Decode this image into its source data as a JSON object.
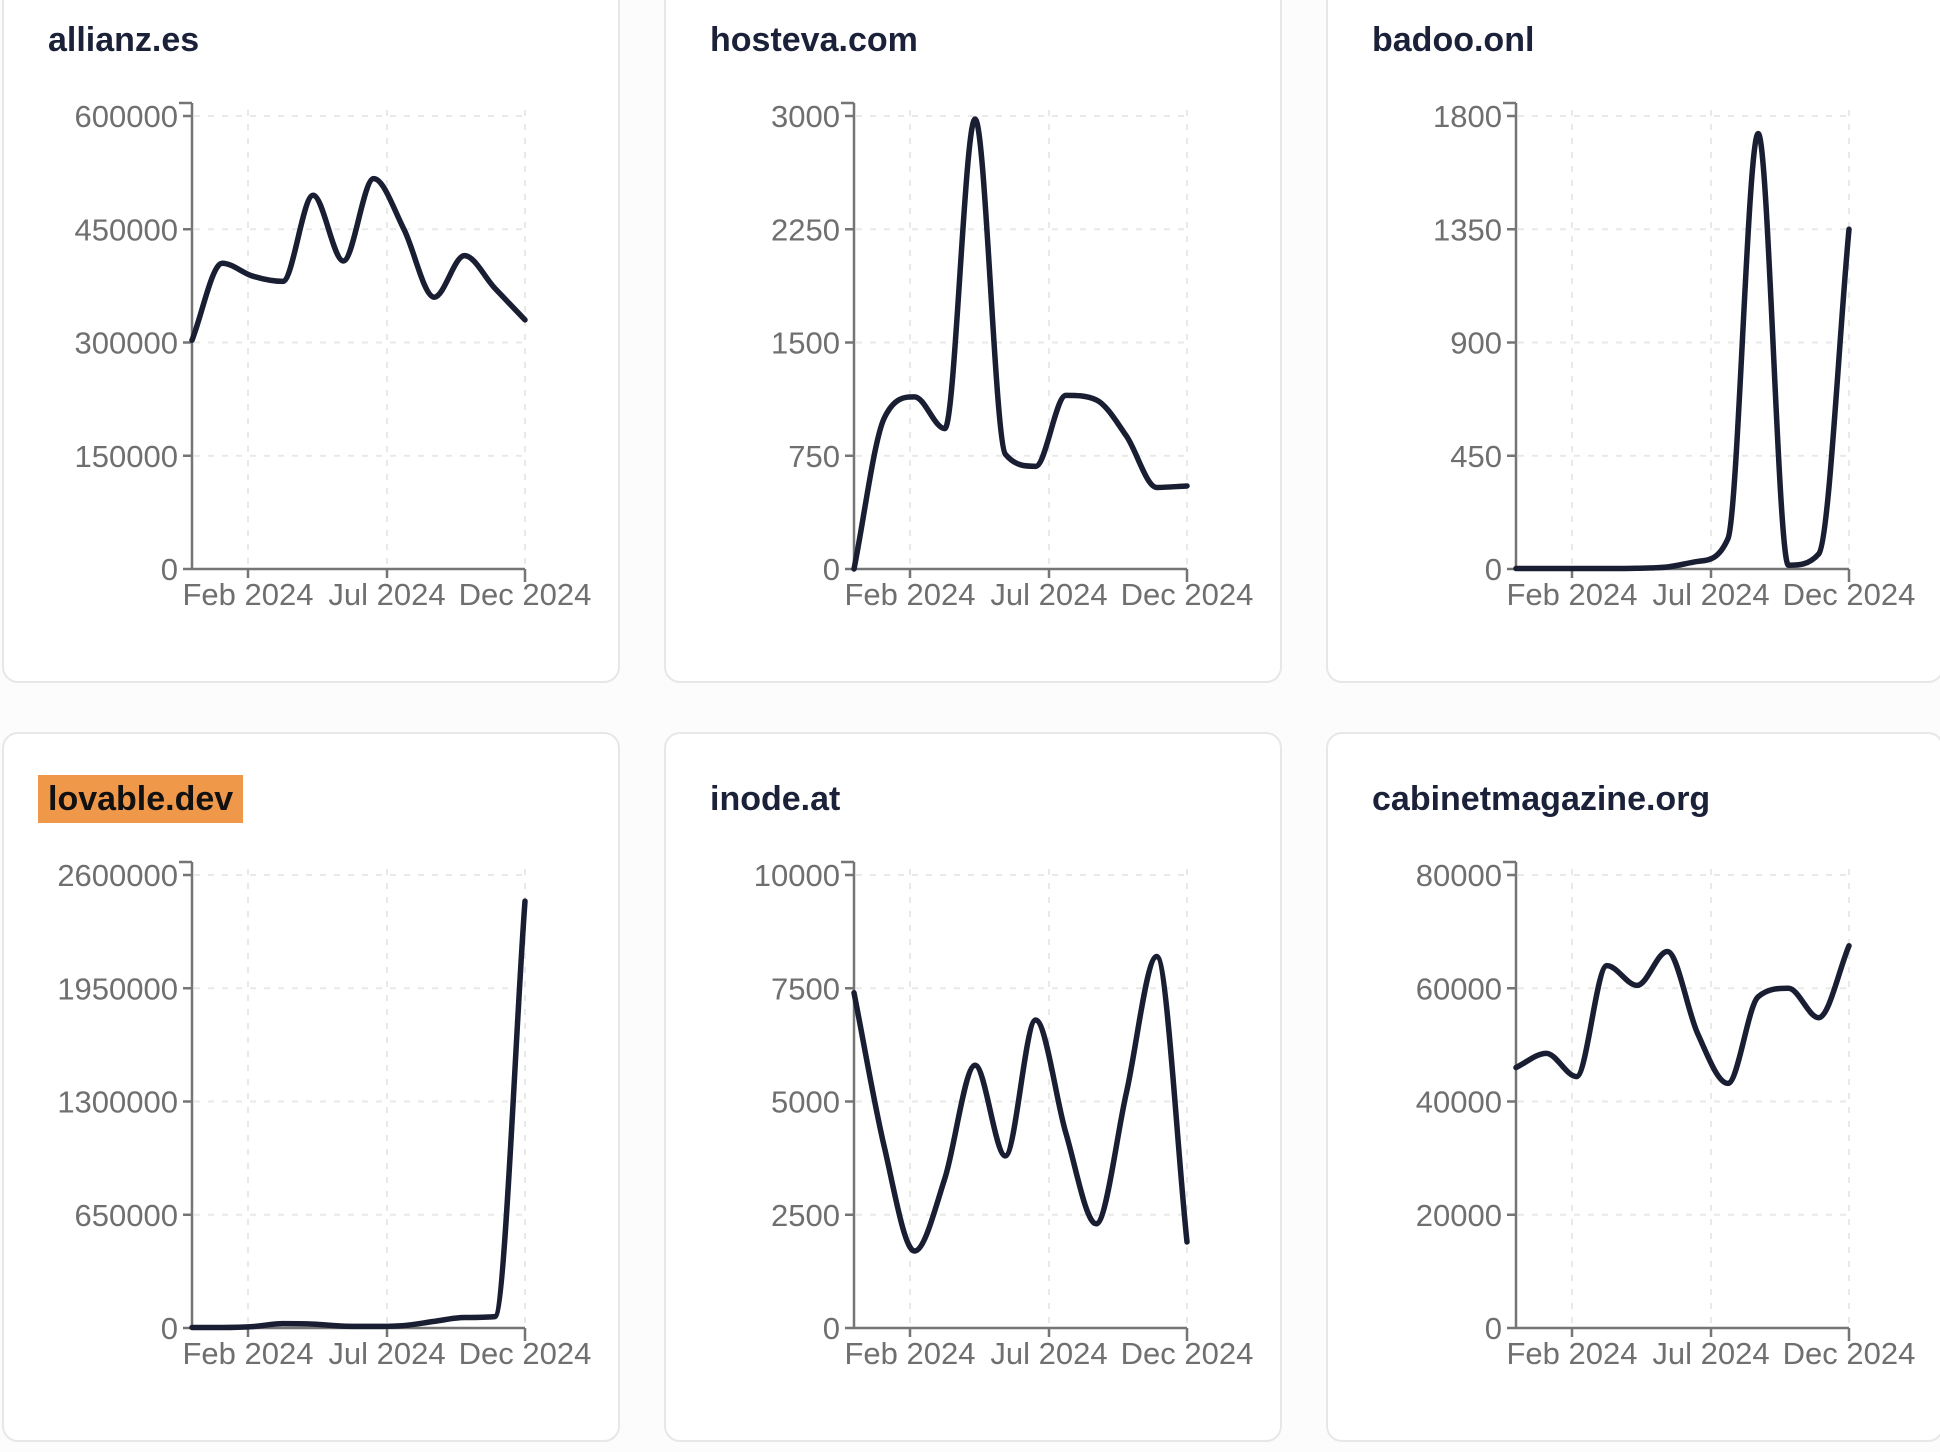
{
  "page": {
    "background_color": "#fcfcfc"
  },
  "style": {
    "card_background": "#ffffff",
    "card_border_color": "#e7e7ea",
    "title_color": "#1b2138",
    "highlight_background": "#f0984a",
    "highlight_text_color": "#111111",
    "line_color": "#191e32",
    "tick_label_color": "#6f6f6f",
    "axis_color": "#757575",
    "grid_color": "#e9e9e9"
  },
  "chart_data": [
    {
      "type": "line",
      "title": "allianz.es",
      "highlighted": false,
      "x": [
        "Jan 2024",
        "Feb 2024",
        "Mar 2024",
        "Apr 2024",
        "May 2024",
        "Jun 2024",
        "Jul 2024",
        "Aug 2024",
        "Sep 2024",
        "Oct 2024",
        "Nov 2024",
        "Dec 2024"
      ],
      "values": [
        303000,
        405000,
        388000,
        381000,
        495000,
        408000,
        517000,
        450000,
        360000,
        415000,
        372000,
        330000
      ],
      "ylim": [
        0,
        600000
      ],
      "yticks": [
        0,
        150000,
        300000,
        450000,
        600000
      ],
      "xtick_labels": [
        "Feb 2024",
        "Jul 2024",
        "Dec 2024"
      ],
      "grid": true,
      "legend": "none"
    },
    {
      "type": "line",
      "title": "hosteva.com",
      "highlighted": false,
      "x": [
        "Jan 2024",
        "Feb 2024",
        "Mar 2024",
        "Apr 2024",
        "May 2024",
        "Jun 2024",
        "Jul 2024",
        "Aug 2024",
        "Sep 2024",
        "Oct 2024",
        "Nov 2024",
        "Dec 2024"
      ],
      "values": [
        0,
        1000,
        1140,
        930,
        2980,
        760,
        680,
        1150,
        1120,
        880,
        540,
        550
      ],
      "ylim": [
        0,
        3000
      ],
      "yticks": [
        0,
        750,
        1500,
        2250,
        3000
      ],
      "xtick_labels": [
        "Feb 2024",
        "Jul 2024",
        "Dec 2024"
      ],
      "grid": true,
      "legend": "none"
    },
    {
      "type": "line",
      "title": "badoo.onl",
      "highlighted": false,
      "x": [
        "Jan 2024",
        "Feb 2024",
        "Mar 2024",
        "Apr 2024",
        "May 2024",
        "Jun 2024",
        "Jul 2024",
        "Aug 2024",
        "Sep 2024",
        "Oct 2024",
        "Nov 2024",
        "Dec 2024"
      ],
      "values": [
        2,
        2,
        2,
        2,
        3,
        8,
        30,
        120,
        1730,
        15,
        60,
        1350
      ],
      "ylim": [
        0,
        1800
      ],
      "yticks": [
        0,
        450,
        900,
        1350,
        1800
      ],
      "xtick_labels": [
        "Feb 2024",
        "Jul 2024",
        "Dec 2024"
      ],
      "grid": true,
      "legend": "none"
    },
    {
      "type": "line",
      "title": "lovable.dev",
      "highlighted": true,
      "x": [
        "Jan 2024",
        "Feb 2024",
        "Mar 2024",
        "Apr 2024",
        "May 2024",
        "Jun 2024",
        "Jul 2024",
        "Aug 2024",
        "Sep 2024",
        "Oct 2024",
        "Nov 2024",
        "Dec 2024"
      ],
      "values": [
        3000,
        3000,
        8000,
        25000,
        22000,
        11000,
        9000,
        14000,
        38000,
        60000,
        65000,
        2450000
      ],
      "ylim": [
        0,
        2600000
      ],
      "yticks": [
        0,
        650000,
        1300000,
        1950000,
        2600000
      ],
      "xtick_labels": [
        "Feb 2024",
        "Jul 2024",
        "Dec 2024"
      ],
      "grid": true,
      "legend": "none"
    },
    {
      "type": "line",
      "title": "inode.at",
      "highlighted": false,
      "x": [
        "Jan 2024",
        "Feb 2024",
        "Mar 2024",
        "Apr 2024",
        "May 2024",
        "Jun 2024",
        "Jul 2024",
        "Aug 2024",
        "Sep 2024",
        "Oct 2024",
        "Nov 2024",
        "Dec 2024"
      ],
      "values": [
        7400,
        4000,
        1700,
        3300,
        5800,
        3800,
        6800,
        4300,
        2300,
        5200,
        8200,
        1900
      ],
      "ylim": [
        0,
        10000
      ],
      "yticks": [
        0,
        2500,
        5000,
        7500,
        10000
      ],
      "xtick_labels": [
        "Feb 2024",
        "Jul 2024",
        "Dec 2024"
      ],
      "grid": true,
      "legend": "none"
    },
    {
      "type": "line",
      "title": "cabinetmagazine.org",
      "highlighted": false,
      "x": [
        "Jan 2024",
        "Feb 2024",
        "Mar 2024",
        "Apr 2024",
        "May 2024",
        "Jun 2024",
        "Jul 2024",
        "Aug 2024",
        "Sep 2024",
        "Oct 2024",
        "Nov 2024",
        "Dec 2024"
      ],
      "values": [
        46000,
        48500,
        44400,
        64000,
        60500,
        66500,
        52000,
        43200,
        58500,
        60000,
        54800,
        67500
      ],
      "ylim": [
        0,
        80000
      ],
      "yticks": [
        0,
        20000,
        40000,
        60000,
        80000
      ],
      "xtick_labels": [
        "Feb 2024",
        "Jul 2024",
        "Dec 2024"
      ],
      "grid": true,
      "legend": "none"
    }
  ]
}
